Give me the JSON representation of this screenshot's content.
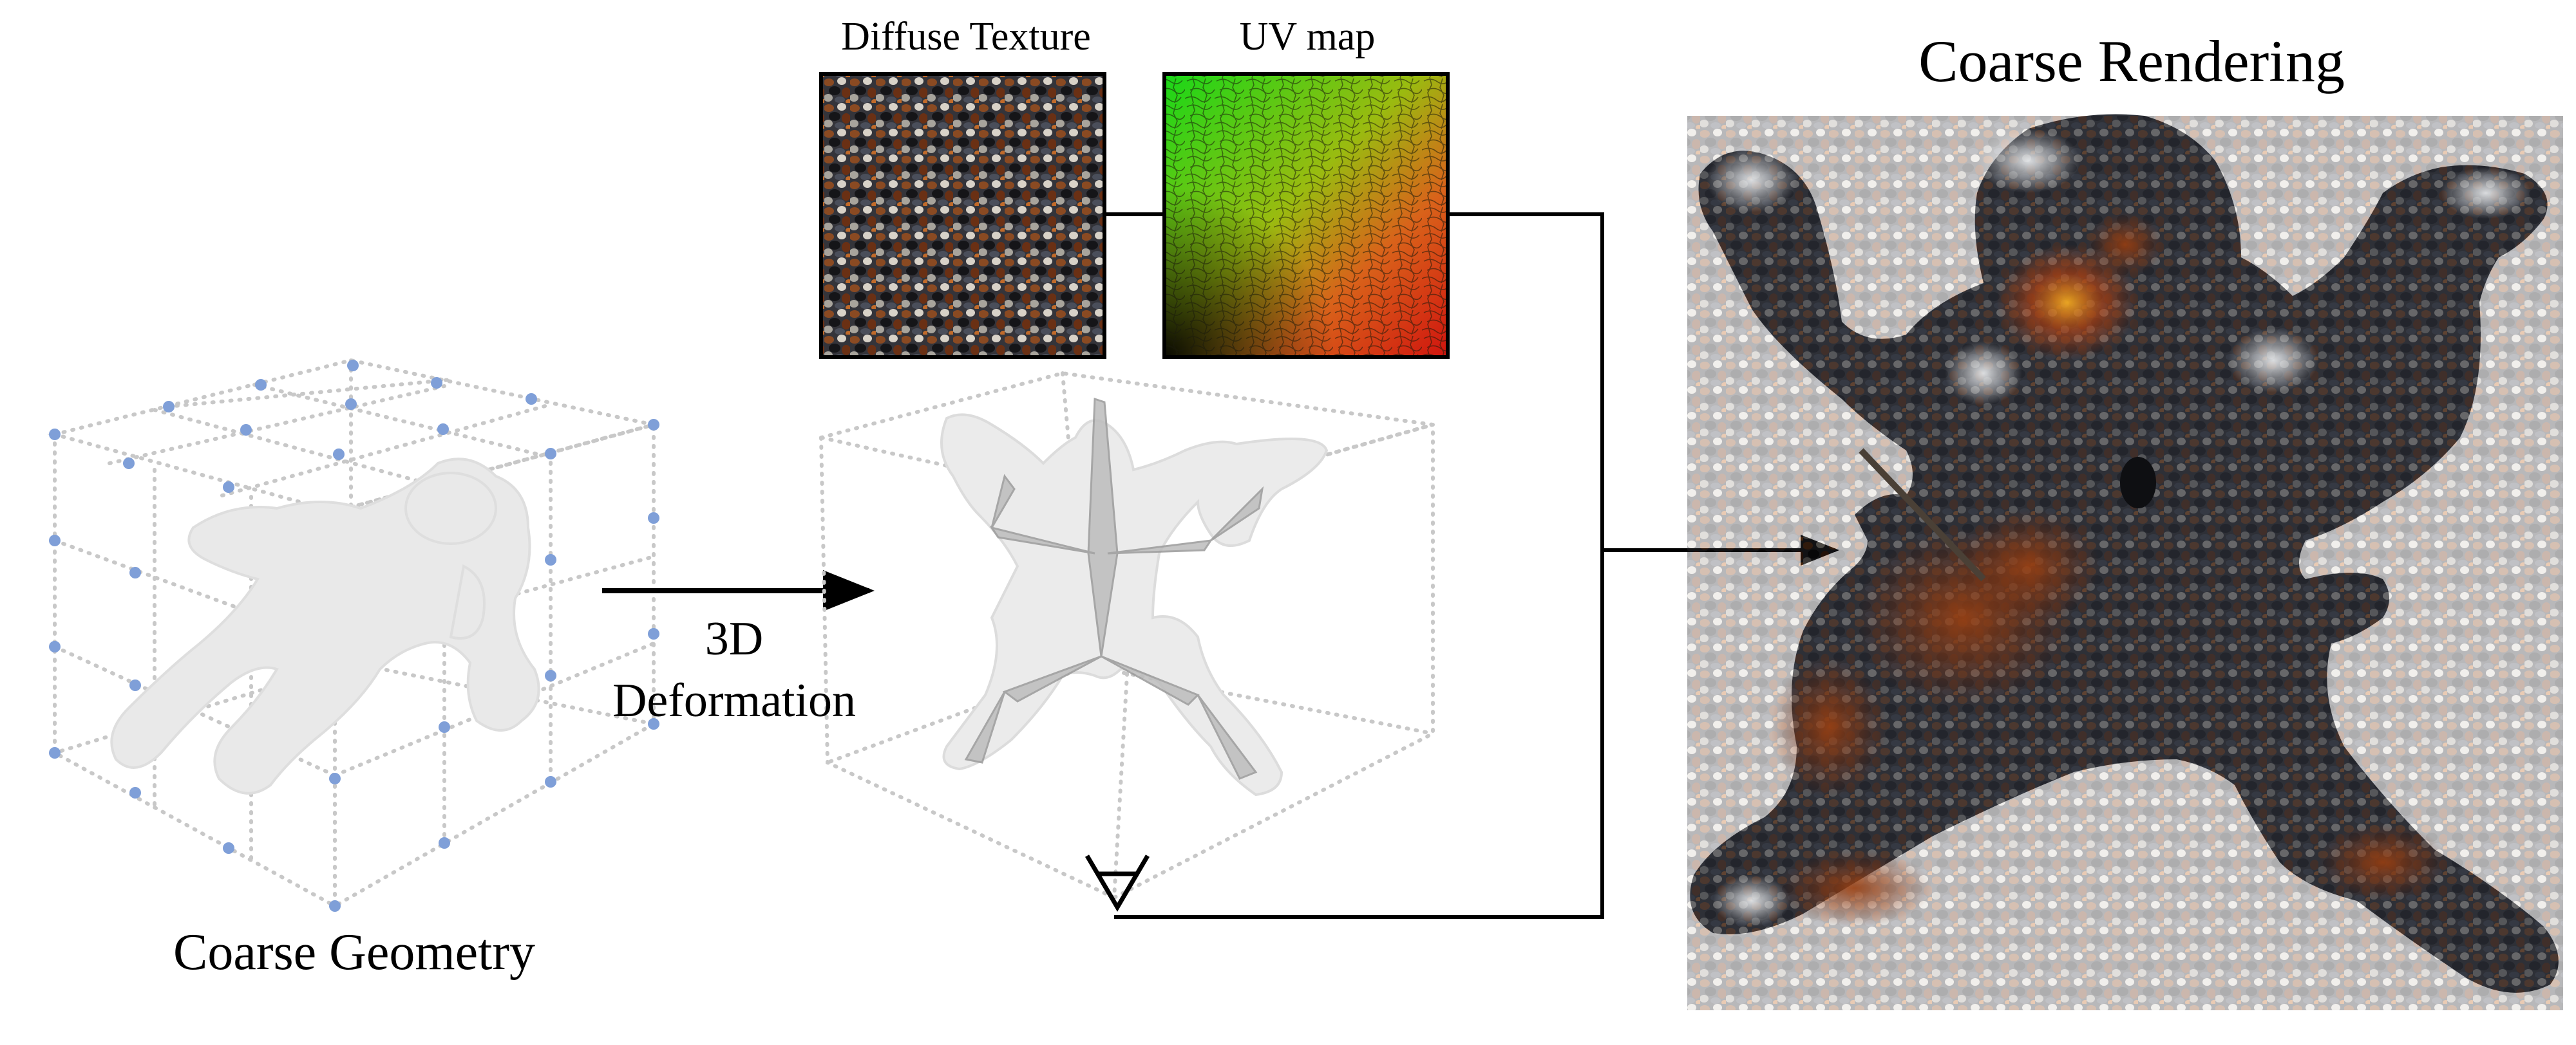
{
  "labels": {
    "diffuse_texture": "Diffuse Texture",
    "uv_map": "UV map",
    "coarse_rendering": "Coarse Rendering",
    "coarse_geometry": "Coarse Geometry",
    "deformation_line1": "3D",
    "deformation_line2": "Deformation"
  },
  "colors": {
    "grid_line": "#c8c8c8",
    "control_point": "#7f9fd8",
    "mesh_fill": "#e9e9e9",
    "skeleton": "#b0b0b0",
    "arrow": "#000000",
    "uv_top_left": "#22c81e",
    "uv_bottom_right": "#e01812",
    "render_body": "#2a2e36"
  },
  "icons": {
    "for_all_symbol": "for-all-icon"
  }
}
